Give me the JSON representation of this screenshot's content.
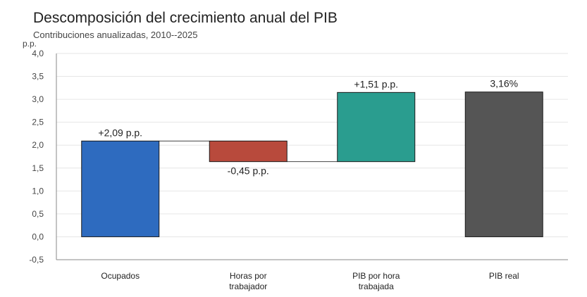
{
  "chart_data": {
    "type": "waterfall",
    "title": "Descomposición del crecimiento anual del PIB",
    "subtitle": "Contribuciones anualizadas, 2010--2025",
    "ylabel": "p.p.",
    "xlabel": "",
    "ylim": [
      -0.5,
      4.0
    ],
    "yticks": [
      "-0,5",
      "0,0",
      "0,5",
      "1,0",
      "1,5",
      "2,0",
      "2,5",
      "3,0",
      "3,5",
      "4,0"
    ],
    "ytick_values": [
      -0.5,
      0.0,
      0.5,
      1.0,
      1.5,
      2.0,
      2.5,
      3.0,
      3.5,
      4.0
    ],
    "grid": true,
    "categories": [
      "Ocupados",
      "Horas por trabajador",
      "PIB por hora trabajada",
      "PIB real"
    ],
    "category_lines": [
      [
        "Ocupados"
      ],
      [
        "Horas por",
        "trabajador"
      ],
      [
        "PIB por hora",
        "trabajada"
      ],
      [
        "PIB real"
      ]
    ],
    "values": [
      2.09,
      -0.45,
      1.51,
      3.16
    ],
    "bars": [
      {
        "category": "Ocupados",
        "start": 0.0,
        "end": 2.09,
        "label": "+2,09 p.p.",
        "color": "#2e6bbf",
        "label_position": "above"
      },
      {
        "category": "Horas por trabajador",
        "start": 2.09,
        "end": 1.64,
        "label": "-0,45 p.p.",
        "color": "#b84a3c",
        "label_position": "below"
      },
      {
        "category": "PIB por hora trabajada",
        "start": 1.64,
        "end": 3.15,
        "label": "+1,51 p.p.",
        "color": "#2a9d8f",
        "label_position": "above"
      },
      {
        "category": "PIB real",
        "start": 0.0,
        "end": 3.16,
        "label": "3,16%",
        "color": "#555555",
        "label_position": "above"
      }
    ],
    "connectors": true
  }
}
